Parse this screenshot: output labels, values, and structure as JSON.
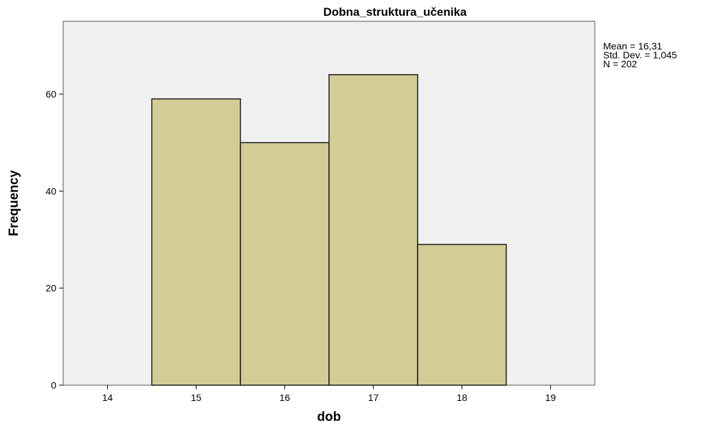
{
  "chart_data": {
    "type": "bar",
    "title": "Dobna_struktura_učenika",
    "xlabel": "dob",
    "ylabel": "Frequency",
    "categories": [
      "15",
      "16",
      "17",
      "18"
    ],
    "bins": [
      {
        "from": 14.5,
        "to": 15.5,
        "value": 59
      },
      {
        "from": 15.5,
        "to": 16.5,
        "value": 50
      },
      {
        "from": 16.5,
        "to": 17.5,
        "value": 64
      },
      {
        "from": 17.5,
        "to": 18.5,
        "value": 29
      }
    ],
    "values": [
      59,
      50,
      64,
      29
    ],
    "xlim": [
      13.5,
      19.5
    ],
    "ylim": [
      0,
      75
    ],
    "x_ticks": [
      "14",
      "15",
      "16",
      "17",
      "18",
      "19"
    ],
    "y_ticks": [
      "0",
      "20",
      "40",
      "60"
    ],
    "grid": false,
    "stats": {
      "mean": "Mean = 16,31",
      "std_dev": "Std. Dev. = 1,045",
      "n": "N = 202"
    },
    "legend_position": "top-right outside plot",
    "colors": {
      "bar_fill": "#d3cc96",
      "bar_stroke": "#1a1a1a",
      "plot_background": "#f0f0f0",
      "axis": "#000000"
    }
  }
}
